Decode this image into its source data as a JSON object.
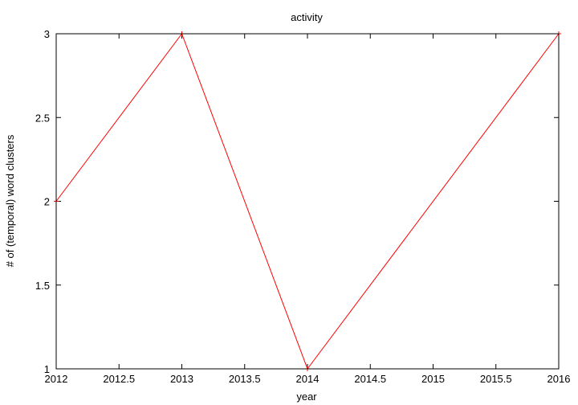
{
  "chart_data": {
    "type": "line",
    "title": "activity",
    "xlabel": "year",
    "ylabel": "# of (temporal) word clusters",
    "xlim": [
      2012,
      2016
    ],
    "ylim": [
      1,
      3
    ],
    "x_ticks": [
      "2012",
      "2012.5",
      "2013",
      "2013.5",
      "2014",
      "2014.5",
      "2015",
      "2015.5",
      "2016"
    ],
    "y_ticks": [
      "1",
      "1.5",
      "2",
      "2.5",
      "3"
    ],
    "grid": false,
    "series": [
      {
        "color": "#ff0000",
        "points": [
          {
            "x": 2012,
            "y": 2
          },
          {
            "x": 2013,
            "y": 3
          },
          {
            "x": 2014,
            "y": 1
          },
          {
            "x": 2016,
            "y": 3
          }
        ]
      }
    ]
  }
}
